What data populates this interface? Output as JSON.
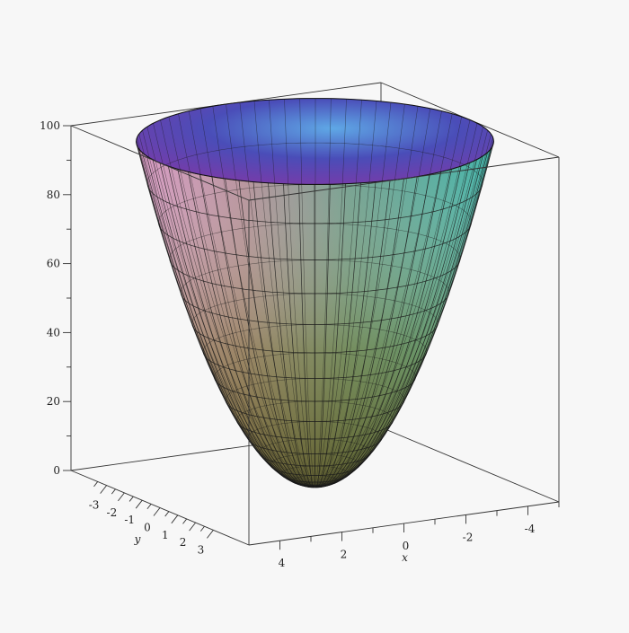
{
  "chart_data": {
    "type": "surface3d",
    "surface": "paraboloid",
    "coordinates": "cylindrical",
    "r_max": 5,
    "z_range": [
      0,
      100
    ],
    "axes": {
      "x": {
        "label": "x",
        "ticks": [
          4,
          3,
          2,
          1,
          0,
          -1,
          -2,
          -3,
          -4,
          -5
        ],
        "tick_labels": [
          "4",
          "2",
          "0",
          "-2",
          "-4"
        ]
      },
      "y": {
        "label": "y",
        "ticks": [
          -3.5,
          -3,
          -2.5,
          -2,
          -1.5,
          -1,
          -0.5,
          0,
          0.5,
          1,
          1.5,
          2,
          2.5,
          3
        ],
        "tick_labels": [
          "-3",
          "-2",
          "-1",
          "0",
          "1",
          "2",
          "3"
        ]
      },
      "z": {
        "label": "",
        "ticks": [
          0,
          10,
          20,
          30,
          40,
          50,
          60,
          70,
          80,
          90,
          100
        ],
        "tick_labels": [
          "0",
          "20",
          "40",
          "60",
          "80",
          "100"
        ]
      }
    },
    "box": true,
    "mesh": {
      "angular_lines": 72,
      "radial_rings": 16
    },
    "colors": {
      "box": "#333333",
      "mesh": "#1a1a1a",
      "back_rim": "#5a3fb0",
      "back_rim_right": "#3f8fe0",
      "low": "#6e6a2c",
      "front_left": "#d59ac0",
      "front_right": "#4fa59d",
      "middle": "#9b9e86"
    }
  }
}
